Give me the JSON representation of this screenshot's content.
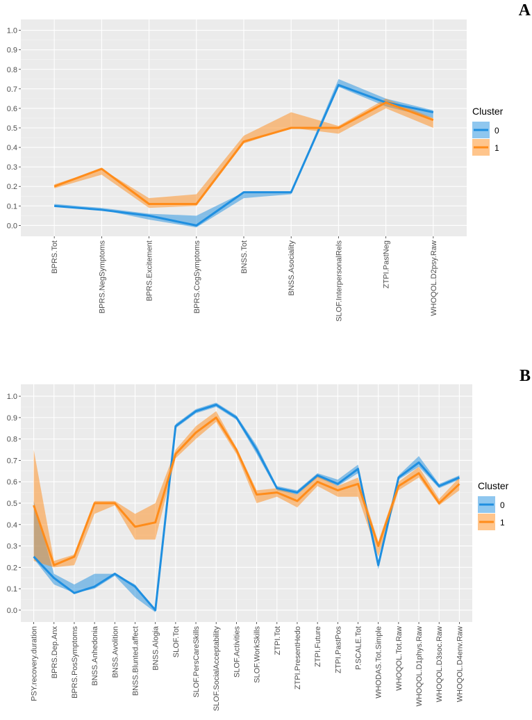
{
  "chart_data": [
    {
      "panel": "A",
      "type": "line",
      "ylim": [
        0,
        1.0
      ],
      "yticks": [
        "0.0",
        "0.1",
        "0.2",
        "0.3",
        "0.4",
        "0.5",
        "0.6",
        "0.7",
        "0.8",
        "0.9",
        "1.0"
      ],
      "categories": [
        "BPRS.Tot",
        "BPRS.NegSymptoms",
        "BPRS.Excitement",
        "BPRS.CogSymptoms",
        "BNSS.Tot",
        "BNSS.Asociality",
        "SLOF.InterpersonalRels",
        "ZTPI.PastNeg",
        "WHOQOL.D2psy.Raw"
      ],
      "legend": {
        "title": "Cluster",
        "position": "right"
      },
      "series": [
        {
          "name": "0",
          "color": "#1f8fe0",
          "values": [
            0.1,
            0.08,
            0.05,
            0.0,
            0.17,
            0.17,
            0.72,
            0.63,
            0.58
          ],
          "lower": [
            0.1,
            0.08,
            0.03,
            -0.01,
            0.14,
            0.16,
            0.71,
            0.61,
            0.55
          ],
          "upper": [
            0.11,
            0.09,
            0.06,
            0.05,
            0.17,
            0.17,
            0.75,
            0.65,
            0.59
          ]
        },
        {
          "name": "1",
          "color": "#ff8c1a",
          "values": [
            0.2,
            0.29,
            0.11,
            0.11,
            0.43,
            0.5,
            0.5,
            0.63,
            0.54
          ],
          "lower": [
            0.19,
            0.26,
            0.09,
            0.1,
            0.42,
            0.5,
            0.47,
            0.6,
            0.5
          ],
          "upper": [
            0.21,
            0.29,
            0.14,
            0.16,
            0.46,
            0.58,
            0.51,
            0.65,
            0.55
          ]
        }
      ]
    },
    {
      "panel": "B",
      "type": "line",
      "ylim": [
        0,
        1.0
      ],
      "yticks": [
        "0.0",
        "0.1",
        "0.2",
        "0.3",
        "0.4",
        "0.5",
        "0.6",
        "0.7",
        "0.8",
        "0.9",
        "1.0"
      ],
      "categories": [
        "PSY.recovery.duration",
        "BPRS.Dep.Anx",
        "BPRS.PosSymptoms",
        "BNSS.Anhedonia",
        "BNSS.Avolition",
        "BNSS.Blunted.affect",
        "BNSS.Alogia",
        "SLOF.Tot",
        "SLOF.PersCareSkills",
        "SLOF.SocialAcceptability",
        "SLOF.Activities",
        "SLOF.WorkSkills",
        "ZTPI.Tot",
        "ZTPI.PresentHedo",
        "ZTPI.Future",
        "ZTPI.PastPos",
        "P.SCALE.Tot",
        "WHODAS.Tot.Simple",
        "WHOQOL.Tot.Raw",
        "WHOQOL.D1phys.Raw",
        "WHOQOL.D3soc.Raw",
        "WHOQOL.D4env.Raw"
      ],
      "legend": {
        "title": "Cluster",
        "position": "right"
      },
      "series": [
        {
          "name": "0",
          "color": "#1f8fe0",
          "values": [
            0.25,
            0.15,
            0.08,
            0.11,
            0.17,
            0.11,
            0.0,
            0.86,
            0.93,
            0.96,
            0.9,
            0.75,
            0.57,
            0.55,
            0.63,
            0.59,
            0.66,
            0.21,
            0.62,
            0.69,
            0.58,
            0.62
          ],
          "lower": [
            0.24,
            0.12,
            0.08,
            0.1,
            0.16,
            0.06,
            -0.01,
            0.85,
            0.92,
            0.95,
            0.89,
            0.73,
            0.56,
            0.54,
            0.62,
            0.58,
            0.64,
            0.19,
            0.61,
            0.67,
            0.57,
            0.61
          ],
          "upper": [
            0.51,
            0.17,
            0.12,
            0.17,
            0.17,
            0.12,
            0.0,
            0.87,
            0.94,
            0.97,
            0.91,
            0.77,
            0.58,
            0.56,
            0.64,
            0.61,
            0.68,
            0.23,
            0.63,
            0.72,
            0.59,
            0.63
          ]
        },
        {
          "name": "1",
          "color": "#ff8c1a",
          "values": [
            0.49,
            0.21,
            0.25,
            0.5,
            0.5,
            0.39,
            0.41,
            0.73,
            0.83,
            0.9,
            0.75,
            0.54,
            0.55,
            0.51,
            0.6,
            0.56,
            0.59,
            0.3,
            0.58,
            0.64,
            0.5,
            0.59
          ],
          "lower": [
            0.23,
            0.2,
            0.21,
            0.45,
            0.49,
            0.33,
            0.33,
            0.71,
            0.8,
            0.88,
            0.73,
            0.5,
            0.53,
            0.48,
            0.58,
            0.53,
            0.53,
            0.25,
            0.56,
            0.62,
            0.49,
            0.56
          ],
          "upper": [
            0.75,
            0.23,
            0.26,
            0.51,
            0.51,
            0.45,
            0.5,
            0.75,
            0.86,
            0.93,
            0.76,
            0.56,
            0.57,
            0.54,
            0.63,
            0.58,
            0.62,
            0.32,
            0.6,
            0.67,
            0.52,
            0.62
          ]
        }
      ]
    }
  ]
}
